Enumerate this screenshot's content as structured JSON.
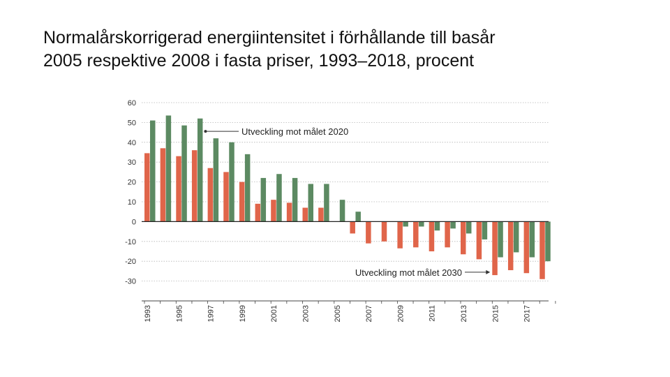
{
  "title": {
    "line1": "Normalårskorrigerad energiintensitet i förhållande till basår",
    "line2": "2005 respektive 2008 i fasta priser, 1993–2018, procent"
  },
  "chart_data": {
    "type": "bar",
    "title": "Normalårskorrigerad energiintensitet i förhållande till basår 2005 respektive 2008 i fasta priser, 1993–2018, procent",
    "xlabel": "",
    "ylabel": "",
    "ylim": [
      -40,
      60
    ],
    "y_ticks": [
      60,
      50,
      40,
      30,
      20,
      10,
      0,
      -10,
      -20,
      -30
    ],
    "grid": true,
    "categories": [
      1993,
      1994,
      1995,
      1996,
      1997,
      1998,
      1999,
      2000,
      2001,
      2002,
      2003,
      2004,
      2005,
      2006,
      2007,
      2008,
      2009,
      2010,
      2011,
      2012,
      2013,
      2014,
      2015,
      2016,
      2017,
      2018
    ],
    "x_tick_labels": [
      "1993",
      "1995",
      "1997",
      "1999",
      "2001",
      "2003",
      "2005",
      "2007",
      "2009",
      "2011",
      "2013",
      "2015",
      "2017"
    ],
    "series": [
      {
        "name": "Utveckling mot målet 2030",
        "color": "#e0654a",
        "values": [
          34.5,
          37,
          33,
          36,
          27,
          25,
          20,
          9,
          11,
          9.5,
          7,
          7,
          null,
          -6,
          -11,
          -10,
          -13.5,
          -13,
          -15,
          -13,
          -16.5,
          -19,
          -27,
          -24.5,
          -26,
          -29
        ]
      },
      {
        "name": "Utveckling mot målet 2020",
        "color": "#5c8a62",
        "values": [
          51,
          53.5,
          48.5,
          52,
          42,
          40,
          34,
          22,
          24,
          22,
          19,
          19,
          11,
          5,
          null,
          null,
          -2.5,
          -2.5,
          -4.5,
          -3.5,
          -6,
          -9,
          -18,
          -15.5,
          -18,
          -20
        ]
      }
    ],
    "annotations": [
      {
        "text": "Utveckling mot målet 2020",
        "series": "Utveckling mot målet 2020",
        "year": 1996
      },
      {
        "text": "Utveckling mot målet 2030",
        "series": "Utveckling mot målet 2030",
        "year": 2015
      }
    ]
  }
}
